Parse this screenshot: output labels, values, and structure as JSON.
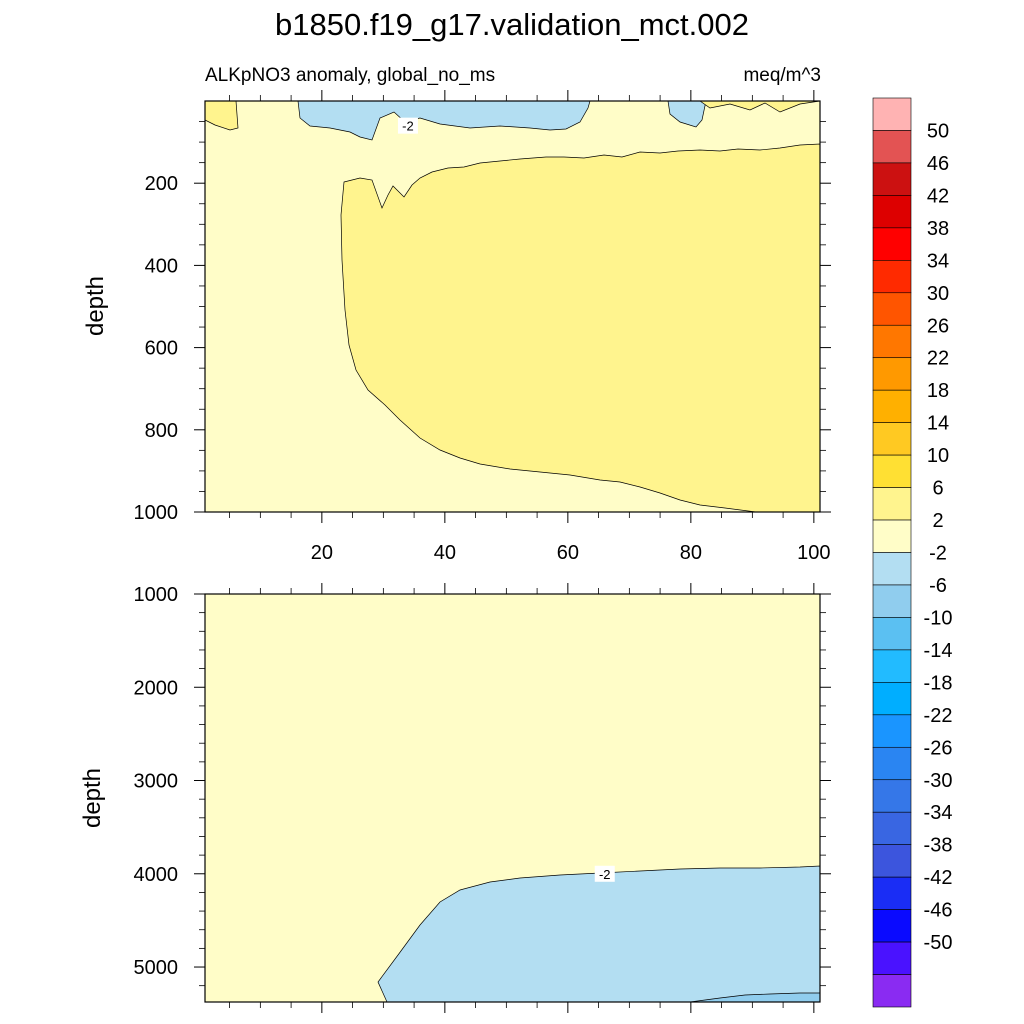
{
  "chart_data": {
    "type": "contour",
    "title": "b1850.f19_g17.validation_mct.002",
    "subtitle_left": "ALKpNO3 anomaly, global_no_ms",
    "subtitle_right": "meq/m^3",
    "panels": [
      {
        "name": "upper",
        "xlim": [
          1,
          101
        ],
        "ylim": [
          0,
          1000
        ],
        "ylabel": "depth",
        "x_ticks": [
          20,
          40,
          60,
          80,
          100
        ],
        "x_tick_labels": [
          "20",
          "40",
          "60",
          "80",
          "100"
        ],
        "y_ticks": [
          200,
          400,
          600,
          800,
          1000
        ],
        "y_tick_labels": [
          "200",
          "400",
          "600",
          "800",
          "1000"
        ],
        "contour_labels": [
          {
            "text": "-2",
            "x": 34,
            "y": 60
          }
        ],
        "regions": [
          {
            "level": "-2 to 2",
            "color": "#FFFDC8"
          },
          {
            "level": "2 to 6",
            "color": "#FFF48E"
          },
          {
            "level": "-6 to -2",
            "color": "#B3DEF2"
          }
        ]
      },
      {
        "name": "lower",
        "xlim": [
          1,
          101
        ],
        "ylim": [
          1000,
          5375
        ],
        "ylabel": "depth",
        "x_ticks": [
          20,
          40,
          60,
          80,
          100
        ],
        "y_ticks": [
          1000,
          2000,
          3000,
          4000,
          5000
        ],
        "y_tick_labels": [
          "1000",
          "2000",
          "3000",
          "4000",
          "5000"
        ],
        "contour_labels": [
          {
            "text": "-2",
            "x": 66,
            "y": 4000
          }
        ],
        "regions": [
          {
            "level": "-2 to 2",
            "color": "#FFFDC8"
          },
          {
            "level": "-6 to -2",
            "color": "#B3DEF2"
          }
        ]
      }
    ],
    "colorbar": {
      "labels": [
        "50",
        "46",
        "42",
        "38",
        "34",
        "30",
        "26",
        "22",
        "18",
        "14",
        "10",
        "6",
        "2",
        "-2",
        "-6",
        "-10",
        "-14",
        "-18",
        "-22",
        "-26",
        "-30",
        "-34",
        "-38",
        "-42",
        "-46",
        "-50"
      ],
      "colors": [
        "#FFB3B3",
        "#E35353",
        "#CC1111",
        "#DD0000",
        "#FF0000",
        "#FF2A00",
        "#FF5500",
        "#FF7700",
        "#FF9900",
        "#FFB000",
        "#FFC922",
        "#FFE033",
        "#FFF48E",
        "#FFFDC8",
        "#B3DEF2",
        "#90CDEE",
        "#5BC0F2",
        "#22BBFF",
        "#00AEFF",
        "#1A95FF",
        "#2A85F2",
        "#3577E8",
        "#3966E2",
        "#3C55DD",
        "#1A2DF5",
        "#0A0AFF",
        "#4A12FF",
        "#8A2BF2"
      ]
    }
  }
}
